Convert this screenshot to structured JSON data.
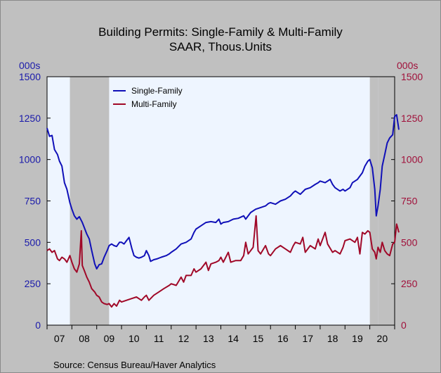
{
  "chart_data": {
    "type": "line",
    "title": "Building Permits: Single-Family & Multi-Family",
    "subtitle": "SAAR, Thous.Units",
    "left_unit": "000s",
    "right_unit": "000s",
    "source": "Source: Census Bureau/Haver Analytics",
    "ylim": [
      0,
      1500
    ],
    "yticks": [
      "0",
      "250",
      "500",
      "750",
      "1000",
      "1250",
      "1500"
    ],
    "xlim": [
      2007.0,
      2021.0
    ],
    "xticks": [
      "07",
      "08",
      "09",
      "10",
      "11",
      "12",
      "13",
      "14",
      "15",
      "16",
      "17",
      "18",
      "19",
      "20"
    ],
    "legend_position": "top-left",
    "recessions": [
      [
        2007.92,
        2009.5
      ],
      [
        2020.0,
        2020.33
      ],
      [
        2020.33,
        2021.0
      ]
    ],
    "colors": {
      "plot_bg": "#eef5ff",
      "recession": "#c0c0c0",
      "left_axis": "#1a1aaa",
      "right_axis": "#a0103a"
    },
    "series": [
      {
        "name": "Single-Family",
        "color": "#1010b8",
        "points": [
          [
            2007.0,
            1190
          ],
          [
            2007.1,
            1140
          ],
          [
            2007.2,
            1145
          ],
          [
            2007.3,
            1060
          ],
          [
            2007.42,
            1030
          ],
          [
            2007.5,
            990
          ],
          [
            2007.6,
            960
          ],
          [
            2007.7,
            860
          ],
          [
            2007.8,
            820
          ],
          [
            2007.92,
            740
          ],
          [
            2008.0,
            700
          ],
          [
            2008.1,
            660
          ],
          [
            2008.2,
            640
          ],
          [
            2008.3,
            655
          ],
          [
            2008.42,
            620
          ],
          [
            2008.5,
            590
          ],
          [
            2008.6,
            550
          ],
          [
            2008.7,
            520
          ],
          [
            2008.8,
            450
          ],
          [
            2008.92,
            370
          ],
          [
            2009.0,
            340
          ],
          [
            2009.1,
            365
          ],
          [
            2009.2,
            370
          ],
          [
            2009.3,
            410
          ],
          [
            2009.42,
            450
          ],
          [
            2009.5,
            480
          ],
          [
            2009.6,
            490
          ],
          [
            2009.7,
            480
          ],
          [
            2009.8,
            475
          ],
          [
            2009.92,
            500
          ],
          [
            2010.0,
            500
          ],
          [
            2010.1,
            490
          ],
          [
            2010.2,
            510
          ],
          [
            2010.3,
            530
          ],
          [
            2010.42,
            460
          ],
          [
            2010.5,
            420
          ],
          [
            2010.6,
            410
          ],
          [
            2010.7,
            405
          ],
          [
            2010.8,
            410
          ],
          [
            2010.92,
            420
          ],
          [
            2011.0,
            450
          ],
          [
            2011.1,
            420
          ],
          [
            2011.17,
            385
          ],
          [
            2011.3,
            395
          ],
          [
            2011.42,
            400
          ],
          [
            2011.6,
            410
          ],
          [
            2011.8,
            420
          ],
          [
            2011.92,
            430
          ],
          [
            2012.0,
            440
          ],
          [
            2012.2,
            460
          ],
          [
            2012.4,
            490
          ],
          [
            2012.6,
            500
          ],
          [
            2012.8,
            520
          ],
          [
            2012.92,
            560
          ],
          [
            2013.0,
            580
          ],
          [
            2013.2,
            600
          ],
          [
            2013.4,
            620
          ],
          [
            2013.6,
            625
          ],
          [
            2013.8,
            620
          ],
          [
            2013.92,
            640
          ],
          [
            2014.0,
            610
          ],
          [
            2014.1,
            620
          ],
          [
            2014.3,
            625
          ],
          [
            2014.5,
            640
          ],
          [
            2014.7,
            645
          ],
          [
            2014.92,
            660
          ],
          [
            2015.0,
            640
          ],
          [
            2015.2,
            680
          ],
          [
            2015.4,
            700
          ],
          [
            2015.6,
            710
          ],
          [
            2015.8,
            720
          ],
          [
            2015.92,
            735
          ],
          [
            2016.0,
            740
          ],
          [
            2016.2,
            730
          ],
          [
            2016.4,
            750
          ],
          [
            2016.6,
            760
          ],
          [
            2016.8,
            780
          ],
          [
            2016.92,
            800
          ],
          [
            2017.0,
            810
          ],
          [
            2017.2,
            790
          ],
          [
            2017.4,
            820
          ],
          [
            2017.6,
            830
          ],
          [
            2017.8,
            850
          ],
          [
            2017.92,
            860
          ],
          [
            2018.0,
            870
          ],
          [
            2018.2,
            860
          ],
          [
            2018.4,
            880
          ],
          [
            2018.5,
            850
          ],
          [
            2018.6,
            830
          ],
          [
            2018.8,
            810
          ],
          [
            2018.92,
            820
          ],
          [
            2019.0,
            810
          ],
          [
            2019.2,
            830
          ],
          [
            2019.3,
            860
          ],
          [
            2019.5,
            880
          ],
          [
            2019.7,
            920
          ],
          [
            2019.8,
            960
          ],
          [
            2019.92,
            990
          ],
          [
            2020.0,
            1000
          ],
          [
            2020.1,
            950
          ],
          [
            2020.2,
            820
          ],
          [
            2020.26,
            660
          ],
          [
            2020.33,
            720
          ],
          [
            2020.42,
            820
          ],
          [
            2020.5,
            960
          ],
          [
            2020.6,
            1030
          ],
          [
            2020.7,
            1100
          ],
          [
            2020.8,
            1130
          ],
          [
            2020.92,
            1150
          ],
          [
            2021.0,
            1260
          ],
          [
            2021.08,
            1270
          ],
          [
            2021.17,
            1180
          ]
        ]
      },
      {
        "name": "Multi-Family",
        "color": "#a00828",
        "points": [
          [
            2007.0,
            450
          ],
          [
            2007.1,
            460
          ],
          [
            2007.2,
            440
          ],
          [
            2007.3,
            450
          ],
          [
            2007.42,
            400
          ],
          [
            2007.5,
            390
          ],
          [
            2007.6,
            410
          ],
          [
            2007.7,
            400
          ],
          [
            2007.8,
            380
          ],
          [
            2007.92,
            420
          ],
          [
            2008.0,
            380
          ],
          [
            2008.1,
            340
          ],
          [
            2008.2,
            320
          ],
          [
            2008.3,
            370
          ],
          [
            2008.38,
            570
          ],
          [
            2008.42,
            360
          ],
          [
            2008.5,
            330
          ],
          [
            2008.6,
            290
          ],
          [
            2008.7,
            260
          ],
          [
            2008.8,
            220
          ],
          [
            2008.92,
            200
          ],
          [
            2009.0,
            180
          ],
          [
            2009.1,
            170
          ],
          [
            2009.2,
            140
          ],
          [
            2009.3,
            130
          ],
          [
            2009.42,
            125
          ],
          [
            2009.5,
            130
          ],
          [
            2009.6,
            110
          ],
          [
            2009.7,
            130
          ],
          [
            2009.8,
            115
          ],
          [
            2009.92,
            150
          ],
          [
            2010.0,
            140
          ],
          [
            2010.2,
            150
          ],
          [
            2010.4,
            160
          ],
          [
            2010.6,
            170
          ],
          [
            2010.8,
            150
          ],
          [
            2010.92,
            170
          ],
          [
            2011.0,
            180
          ],
          [
            2011.1,
            150
          ],
          [
            2011.3,
            180
          ],
          [
            2011.5,
            200
          ],
          [
            2011.7,
            220
          ],
          [
            2011.92,
            240
          ],
          [
            2012.0,
            250
          ],
          [
            2012.2,
            240
          ],
          [
            2012.4,
            290
          ],
          [
            2012.5,
            260
          ],
          [
            2012.6,
            300
          ],
          [
            2012.8,
            300
          ],
          [
            2012.92,
            340
          ],
          [
            2013.0,
            320
          ],
          [
            2013.2,
            340
          ],
          [
            2013.4,
            380
          ],
          [
            2013.5,
            330
          ],
          [
            2013.6,
            370
          ],
          [
            2013.8,
            380
          ],
          [
            2013.92,
            390
          ],
          [
            2014.0,
            410
          ],
          [
            2014.1,
            380
          ],
          [
            2014.3,
            440
          ],
          [
            2014.4,
            380
          ],
          [
            2014.6,
            390
          ],
          [
            2014.8,
            390
          ],
          [
            2014.92,
            420
          ],
          [
            2015.0,
            500
          ],
          [
            2015.1,
            430
          ],
          [
            2015.3,
            470
          ],
          [
            2015.42,
            660
          ],
          [
            2015.5,
            450
          ],
          [
            2015.6,
            430
          ],
          [
            2015.8,
            480
          ],
          [
            2015.92,
            430
          ],
          [
            2016.0,
            420
          ],
          [
            2016.2,
            460
          ],
          [
            2016.4,
            480
          ],
          [
            2016.6,
            460
          ],
          [
            2016.8,
            440
          ],
          [
            2016.92,
            480
          ],
          [
            2017.0,
            500
          ],
          [
            2017.2,
            490
          ],
          [
            2017.3,
            530
          ],
          [
            2017.4,
            440
          ],
          [
            2017.6,
            480
          ],
          [
            2017.8,
            460
          ],
          [
            2017.92,
            520
          ],
          [
            2018.0,
            480
          ],
          [
            2018.2,
            560
          ],
          [
            2018.3,
            490
          ],
          [
            2018.5,
            440
          ],
          [
            2018.6,
            450
          ],
          [
            2018.8,
            430
          ],
          [
            2018.92,
            470
          ],
          [
            2019.0,
            510
          ],
          [
            2019.2,
            520
          ],
          [
            2019.4,
            500
          ],
          [
            2019.5,
            530
          ],
          [
            2019.6,
            430
          ],
          [
            2019.7,
            560
          ],
          [
            2019.8,
            550
          ],
          [
            2019.92,
            570
          ],
          [
            2020.0,
            560
          ],
          [
            2020.1,
            460
          ],
          [
            2020.2,
            440
          ],
          [
            2020.26,
            400
          ],
          [
            2020.33,
            470
          ],
          [
            2020.42,
            440
          ],
          [
            2020.5,
            500
          ],
          [
            2020.6,
            450
          ],
          [
            2020.7,
            430
          ],
          [
            2020.8,
            420
          ],
          [
            2020.92,
            490
          ],
          [
            2021.0,
            500
          ],
          [
            2021.08,
            610
          ],
          [
            2021.17,
            560
          ]
        ]
      }
    ]
  }
}
